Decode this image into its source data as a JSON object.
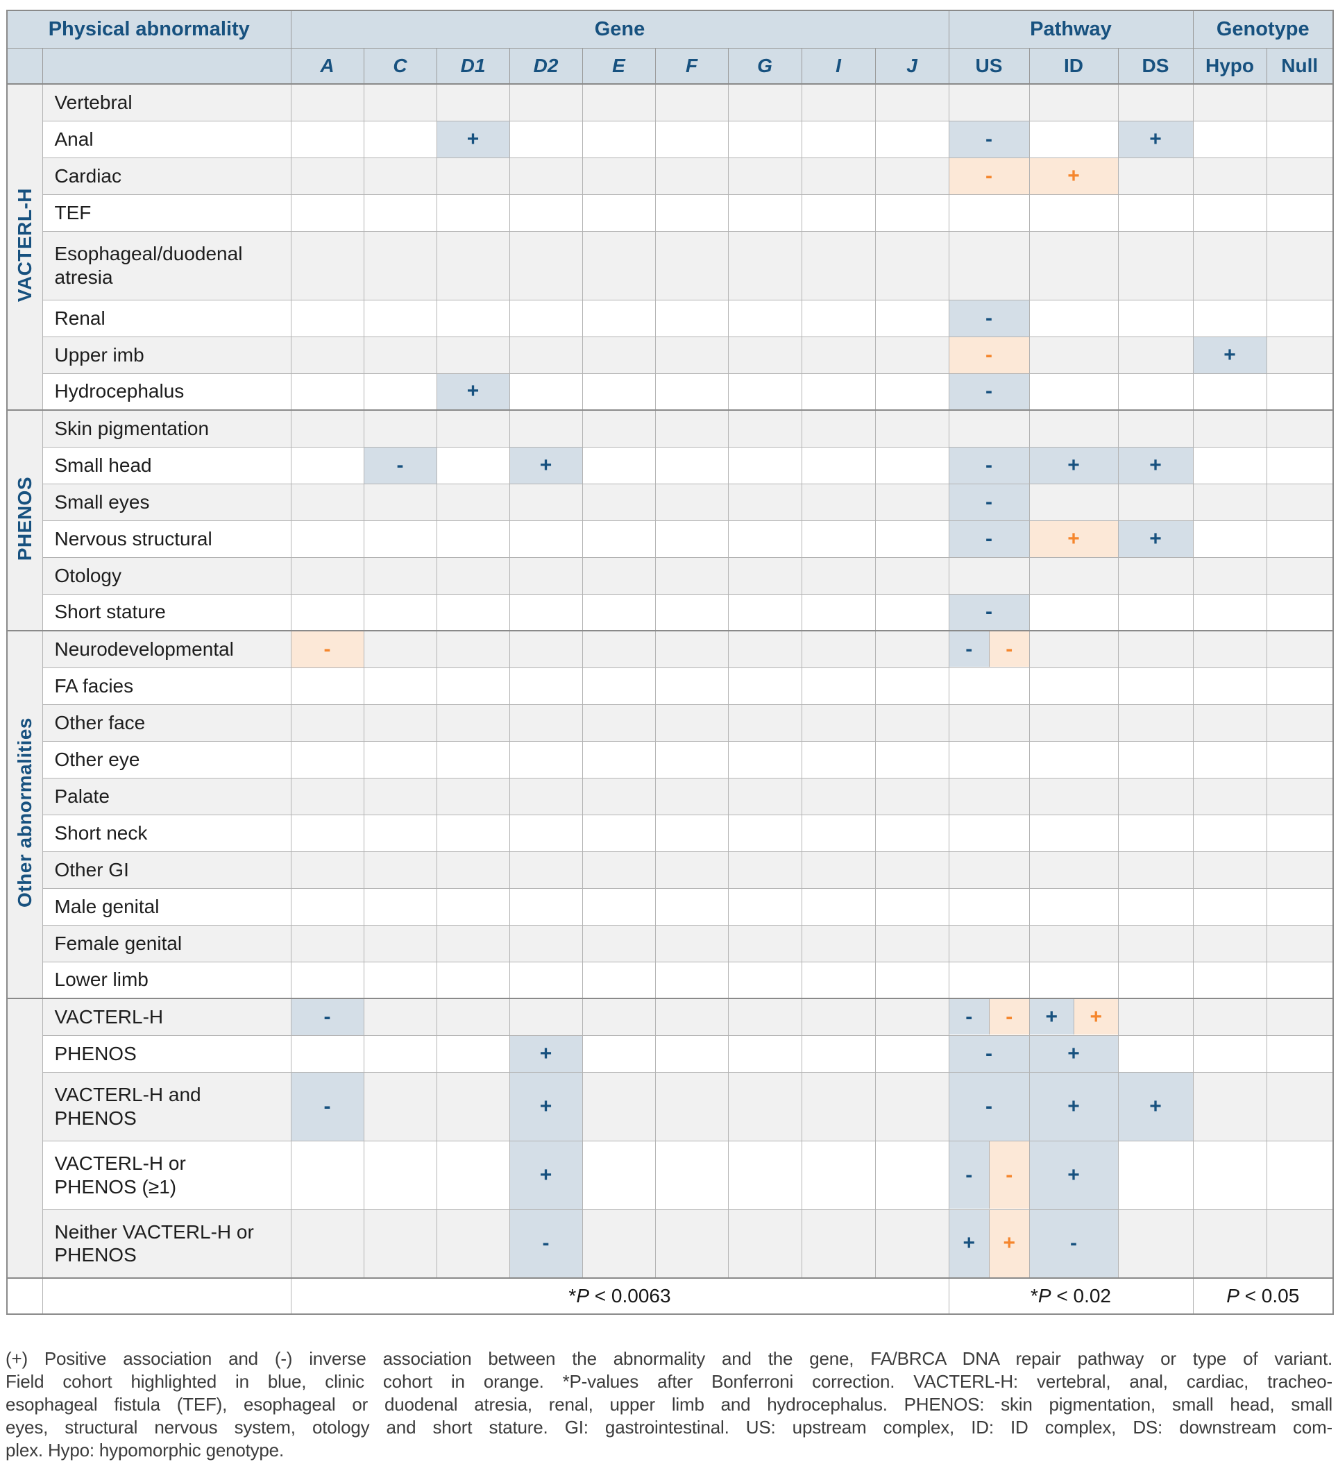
{
  "colors": {
    "header_bg": "#d2dde6",
    "blue_dark": "#17517f",
    "field_bg": "#d4dee7",
    "field_fg": "#17517f",
    "clinic_bg": "#fce8d7",
    "clinic_fg": "#f5862d",
    "row_gray": "#f1f1f1",
    "row_white": "#ffffff",
    "group_col_bg": "#f0f0f0",
    "border_light": "#b3b3b3",
    "border_dark": "#8a8a8a",
    "caption_color": "#3c3c3c"
  },
  "table": {
    "header": {
      "physical_abnormality": "Physical abnormality",
      "gene": "Gene",
      "pathway": "Pathway",
      "genotype": "Genotype",
      "gene_columns": [
        "A",
        "C",
        "D1",
        "D2",
        "E",
        "F",
        "G",
        "I",
        "J"
      ],
      "pathway_columns": [
        "US",
        "ID",
        "DS"
      ],
      "genotype_columns": [
        "Hypo",
        "Null"
      ]
    },
    "legend_note": "field cohort = blue, clinic cohort = orange",
    "groups": [
      {
        "label": "VACTERL-H",
        "rows": [
          {
            "label": "Vertebral"
          },
          {
            "label": "Anal",
            "marks": {
              "D1": {
                "sign": "+",
                "cohort": "field"
              },
              "US": {
                "sign": "-",
                "cohort": "field"
              },
              "DS": {
                "sign": "+",
                "cohort": "field"
              }
            }
          },
          {
            "label": "Cardiac",
            "marks": {
              "US": {
                "sign": "-",
                "cohort": "clinic"
              },
              "ID": {
                "sign": "+",
                "cohort": "clinic"
              }
            }
          },
          {
            "label": "TEF"
          },
          {
            "label": "Esophageal/duodenal\natresia",
            "tall": true
          },
          {
            "label": "Renal",
            "marks": {
              "US": {
                "sign": "-",
                "cohort": "field"
              }
            }
          },
          {
            "label": "Upper imb",
            "marks": {
              "US": {
                "sign": "-",
                "cohort": "clinic"
              },
              "Hypo": {
                "sign": "+",
                "cohort": "field"
              }
            }
          },
          {
            "label": "Hydrocephalus",
            "marks": {
              "D1": {
                "sign": "+",
                "cohort": "field"
              },
              "US": {
                "sign": "-",
                "cohort": "field"
              }
            }
          }
        ]
      },
      {
        "label": "PHENOS",
        "rows": [
          {
            "label": "Skin pigmentation"
          },
          {
            "label": "Small head",
            "marks": {
              "C": {
                "sign": "-",
                "cohort": "field"
              },
              "D2": {
                "sign": "+",
                "cohort": "field"
              },
              "US": {
                "sign": "-",
                "cohort": "field"
              },
              "ID": {
                "sign": "+",
                "cohort": "field"
              },
              "DS": {
                "sign": "+",
                "cohort": "field"
              }
            }
          },
          {
            "label": "Small eyes",
            "marks": {
              "US": {
                "sign": "-",
                "cohort": "field"
              }
            }
          },
          {
            "label": "Nervous structural",
            "marks": {
              "US": {
                "sign": "-",
                "cohort": "field"
              },
              "ID": {
                "sign": "+",
                "cohort": "clinic"
              },
              "DS": {
                "sign": "+",
                "cohort": "field"
              }
            }
          },
          {
            "label": "Otology"
          },
          {
            "label": "Short stature",
            "marks": {
              "US": {
                "sign": "-",
                "cohort": "field"
              }
            }
          }
        ]
      },
      {
        "label": "Other abnormalities",
        "rows": [
          {
            "label": "Neurodevelopmental",
            "marks": {
              "A": {
                "sign": "-",
                "cohort": "clinic"
              },
              "US": {
                "split": [
                  {
                    "sign": "-",
                    "cohort": "field"
                  },
                  {
                    "sign": "-",
                    "cohort": "clinic"
                  }
                ]
              }
            }
          },
          {
            "label": "FA facies"
          },
          {
            "label": "Other face"
          },
          {
            "label": "Other eye"
          },
          {
            "label": "Palate"
          },
          {
            "label": "Short neck"
          },
          {
            "label": "Other GI"
          },
          {
            "label": "Male genital"
          },
          {
            "label": "Female genital"
          },
          {
            "label": "Lower limb"
          }
        ]
      },
      {
        "label": "",
        "rows": [
          {
            "label": "VACTERL-H",
            "marks": {
              "A": {
                "sign": "-",
                "cohort": "field"
              },
              "US": {
                "split": [
                  {
                    "sign": "-",
                    "cohort": "field"
                  },
                  {
                    "sign": "-",
                    "cohort": "clinic"
                  }
                ]
              },
              "ID": {
                "split": [
                  {
                    "sign": "+",
                    "cohort": "field"
                  },
                  {
                    "sign": "+",
                    "cohort": "clinic"
                  }
                ]
              }
            }
          },
          {
            "label": "PHENOS",
            "marks": {
              "D2": {
                "sign": "+",
                "cohort": "field"
              },
              "US": {
                "sign": "-",
                "cohort": "field"
              },
              "ID": {
                "sign": "+",
                "cohort": "field"
              }
            }
          },
          {
            "label": "VACTERL-H and\nPHENOS",
            "tall": true,
            "marks": {
              "A": {
                "sign": "-",
                "cohort": "field"
              },
              "D2": {
                "sign": "+",
                "cohort": "field"
              },
              "US": {
                "sign": "-",
                "cohort": "field"
              },
              "ID": {
                "sign": "+",
                "cohort": "field"
              },
              "DS": {
                "sign": "+",
                "cohort": "field"
              }
            }
          },
          {
            "label": "VACTERL-H or\nPHENOS (≥1)",
            "tall": true,
            "marks": {
              "D2": {
                "sign": "+",
                "cohort": "field"
              },
              "US": {
                "split": [
                  {
                    "sign": "-",
                    "cohort": "field"
                  },
                  {
                    "sign": "-",
                    "cohort": "clinic"
                  }
                ]
              },
              "ID": {
                "sign": "+",
                "cohort": "field"
              }
            }
          },
          {
            "label": "Neither VACTERL-H or\nPHENOS",
            "tall": true,
            "marks": {
              "D2": {
                "sign": "-",
                "cohort": "field"
              },
              "US": {
                "split": [
                  {
                    "sign": "+",
                    "cohort": "field"
                  },
                  {
                    "sign": "+",
                    "cohort": "clinic"
                  }
                ]
              },
              "ID": {
                "sign": "-",
                "cohort": "field"
              }
            }
          }
        ]
      }
    ],
    "footer": {
      "gene_p": "*P < 0.0063",
      "pathway_p": "*P < 0.02",
      "genotype_p": "P < 0.05"
    }
  },
  "caption": {
    "lines": [
      "(+) Positive association and (-) inverse association between the abnormality and the gene, FA/BRCA DNA repair pathway or type of variant.",
      "Field cohort highlighted in blue, clinic cohort in orange. *P-values after Bonferroni correction. VACTERL-H: vertebral, anal, cardiac, tracheo-",
      "esophageal fistula (TEF), esophageal or duodenal atresia, renal, upper limb and hydrocephalus. PHENOS: skin pigmentation, small head, small",
      "eyes, structural nervous system, otology and short stature. GI: gastrointestinal. US: upstream complex, ID: ID complex, DS: downstream com-",
      "plex. Hypo: hypomorphic genotype."
    ]
  }
}
